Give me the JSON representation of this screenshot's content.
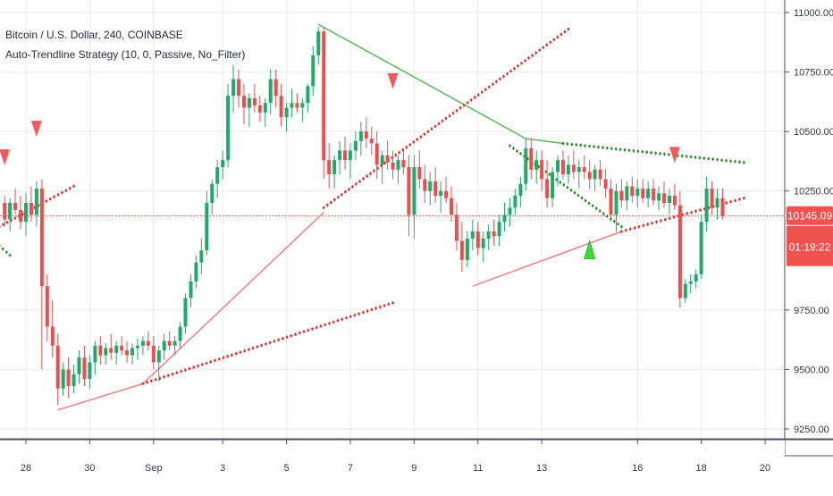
{
  "legend": {
    "symbol_line": "Bitcoin / U.S. Dollar, 240, COINBASE",
    "indicator_line": "Auto-Trendline Strategy (10, 0, Passive, No_Filter)"
  },
  "colors": {
    "up": "#26a69a",
    "down": "#ef5350",
    "up_candle": "#1faa6a",
    "down_candle": "#ef4d4d",
    "trend_green": "#5cb85c",
    "trend_red": "#f08080",
    "dot_red": "#e03030",
    "dot_green": "#2e8b2e",
    "price_tag": "#ef5350",
    "grid": "#e6e9ee",
    "axis_text": "#333a44"
  },
  "chart_data": {
    "type": "candlestick",
    "symbol": "Bitcoin / U.S. Dollar",
    "interval": "240",
    "exchange": "COINBASE",
    "ylim": [
      9200,
      11100
    ],
    "y_ticks": [
      11000.0,
      10750.0,
      10500.0,
      10250.0,
      9750.0,
      9500.0,
      9250.0
    ],
    "y_tick_labels": [
      "11000.00",
      "10750.00",
      "10500.00",
      "10250.00",
      "9750.00",
      "9500.00",
      "9250.00"
    ],
    "x_ticks": [
      {
        "label": "28",
        "pos": 0
      },
      {
        "label": "30",
        "pos": 12
      },
      {
        "label": "Sep",
        "pos": 24
      },
      {
        "label": "3",
        "pos": 37
      },
      {
        "label": "5",
        "pos": 49
      },
      {
        "label": "7",
        "pos": 61
      },
      {
        "label": "9",
        "pos": 73
      },
      {
        "label": "11",
        "pos": 85
      },
      {
        "label": "13",
        "pos": 97
      },
      {
        "label": "16",
        "pos": 115
      },
      {
        "label": "18",
        "pos": 127
      },
      {
        "label": "20",
        "pos": 139
      }
    ],
    "last_price": 10145.09,
    "last_price_label": "10145.09",
    "countdown_label": "01:19:22",
    "candles": [
      [
        -4,
        10200,
        10230,
        10100,
        10130
      ],
      [
        -3,
        10130,
        10220,
        10080,
        10200
      ],
      [
        -2,
        10200,
        10260,
        10150,
        10170
      ],
      [
        -1,
        10170,
        10230,
        10090,
        10120
      ],
      [
        0,
        10120,
        10240,
        10060,
        10200
      ],
      [
        1,
        10200,
        10270,
        10120,
        10150
      ],
      [
        2,
        10150,
        10290,
        10100,
        10260
      ],
      [
        3,
        10260,
        10300,
        9500,
        9850
      ],
      [
        4,
        9850,
        9900,
        9620,
        9680
      ],
      [
        5,
        9680,
        9790,
        9550,
        9600
      ],
      [
        6,
        9600,
        9650,
        9350,
        9420
      ],
      [
        7,
        9420,
        9530,
        9390,
        9500
      ],
      [
        8,
        9500,
        9550,
        9380,
        9430
      ],
      [
        9,
        9430,
        9520,
        9400,
        9480
      ],
      [
        10,
        9480,
        9580,
        9440,
        9550
      ],
      [
        11,
        9550,
        9600,
        9430,
        9460
      ],
      [
        12,
        9460,
        9560,
        9420,
        9530
      ],
      [
        13,
        9530,
        9620,
        9480,
        9600
      ],
      [
        14,
        9600,
        9640,
        9520,
        9560
      ],
      [
        15,
        9560,
        9610,
        9520,
        9590
      ],
      [
        16,
        9590,
        9650,
        9540,
        9570
      ],
      [
        17,
        9570,
        9620,
        9520,
        9600
      ],
      [
        18,
        9600,
        9640,
        9560,
        9580
      ],
      [
        19,
        9580,
        9620,
        9530,
        9560
      ],
      [
        20,
        9560,
        9610,
        9520,
        9590
      ],
      [
        21,
        9590,
        9630,
        9540,
        9600
      ],
      [
        22,
        9600,
        9640,
        9560,
        9620
      ],
      [
        23,
        9620,
        9660,
        9580,
        9600
      ],
      [
        24,
        9600,
        9640,
        9500,
        9530
      ],
      [
        25,
        9530,
        9600,
        9450,
        9580
      ],
      [
        26,
        9580,
        9650,
        9540,
        9620
      ],
      [
        27,
        9620,
        9660,
        9580,
        9600
      ],
      [
        28,
        9600,
        9640,
        9560,
        9620
      ],
      [
        29,
        9620,
        9700,
        9590,
        9680
      ],
      [
        30,
        9680,
        9820,
        9650,
        9800
      ],
      [
        31,
        9800,
        9900,
        9760,
        9870
      ],
      [
        32,
        9870,
        9980,
        9840,
        9950
      ],
      [
        33,
        9950,
        10050,
        9900,
        10000
      ],
      [
        34,
        10000,
        10250,
        9980,
        10200
      ],
      [
        35,
        10200,
        10300,
        10150,
        10280
      ],
      [
        36,
        10280,
        10380,
        10220,
        10350
      ],
      [
        37,
        10350,
        10420,
        10300,
        10380
      ],
      [
        38,
        10380,
        10700,
        10350,
        10650
      ],
      [
        39,
        10650,
        10780,
        10580,
        10720
      ],
      [
        40,
        10720,
        10760,
        10600,
        10650
      ],
      [
        41,
        10650,
        10700,
        10530,
        10600
      ],
      [
        42,
        10600,
        10660,
        10520,
        10640
      ],
      [
        43,
        10640,
        10700,
        10580,
        10610
      ],
      [
        44,
        10610,
        10650,
        10540,
        10580
      ],
      [
        45,
        10580,
        10640,
        10520,
        10620
      ],
      [
        46,
        10620,
        10760,
        10570,
        10720
      ],
      [
        47,
        10720,
        10760,
        10600,
        10650
      ],
      [
        48,
        10650,
        10700,
        10520,
        10560
      ],
      [
        49,
        10560,
        10620,
        10500,
        10600
      ],
      [
        50,
        10600,
        10680,
        10560,
        10620
      ],
      [
        51,
        10620,
        10660,
        10580,
        10600
      ],
      [
        52,
        10600,
        10640,
        10540,
        10620
      ],
      [
        53,
        10620,
        10700,
        10580,
        10690
      ],
      [
        54,
        10690,
        10860,
        10650,
        10820
      ],
      [
        55,
        10820,
        10940,
        10780,
        10920
      ],
      [
        56,
        10920,
        10940,
        10300,
        10380
      ],
      [
        57,
        10380,
        10450,
        10260,
        10320
      ],
      [
        58,
        10320,
        10400,
        10260,
        10380
      ],
      [
        59,
        10380,
        10460,
        10320,
        10420
      ],
      [
        60,
        10420,
        10480,
        10340,
        10380
      ],
      [
        61,
        10380,
        10450,
        10300,
        10420
      ],
      [
        62,
        10420,
        10500,
        10380,
        10460
      ],
      [
        63,
        10460,
        10540,
        10400,
        10500
      ],
      [
        64,
        10500,
        10560,
        10430,
        10470
      ],
      [
        65,
        10470,
        10520,
        10400,
        10450
      ],
      [
        66,
        10450,
        10500,
        10300,
        10360
      ],
      [
        67,
        10360,
        10420,
        10280,
        10400
      ],
      [
        68,
        10400,
        10460,
        10340,
        10370
      ],
      [
        69,
        10370,
        10420,
        10300,
        10340
      ],
      [
        70,
        10340,
        10400,
        10280,
        10380
      ],
      [
        71,
        10380,
        10430,
        10320,
        10350
      ],
      [
        72,
        10350,
        10400,
        10060,
        10150
      ],
      [
        73,
        10150,
        10400,
        10050,
        10350
      ],
      [
        74,
        10350,
        10420,
        10260,
        10300
      ],
      [
        75,
        10300,
        10360,
        10200,
        10250
      ],
      [
        76,
        10250,
        10330,
        10190,
        10290
      ],
      [
        77,
        10290,
        10350,
        10200,
        10230
      ],
      [
        78,
        10230,
        10290,
        10160,
        10250
      ],
      [
        79,
        10250,
        10310,
        10200,
        10220
      ],
      [
        80,
        10220,
        10270,
        10120,
        10150
      ],
      [
        81,
        10150,
        10200,
        10000,
        10040
      ],
      [
        82,
        10040,
        10120,
        9910,
        9960
      ],
      [
        83,
        9960,
        10080,
        9930,
        10050
      ],
      [
        84,
        10050,
        10130,
        10000,
        10080
      ],
      [
        85,
        10080,
        10120,
        9980,
        10010
      ],
      [
        86,
        10010,
        10080,
        9950,
        10050
      ],
      [
        87,
        10050,
        10110,
        10000,
        10080
      ],
      [
        88,
        10080,
        10130,
        10020,
        10060
      ],
      [
        89,
        10060,
        10150,
        10020,
        10120
      ],
      [
        90,
        10120,
        10200,
        10080,
        10150
      ],
      [
        91,
        10150,
        10220,
        10100,
        10180
      ],
      [
        92,
        10180,
        10260,
        10150,
        10230
      ],
      [
        93,
        10230,
        10310,
        10180,
        10280
      ],
      [
        94,
        10280,
        10470,
        10250,
        10430
      ],
      [
        95,
        10430,
        10470,
        10300,
        10340
      ],
      [
        96,
        10340,
        10420,
        10280,
        10380
      ],
      [
        97,
        10380,
        10420,
        10250,
        10300
      ],
      [
        98,
        10300,
        10380,
        10180,
        10220
      ],
      [
        99,
        10220,
        10350,
        10180,
        10330
      ],
      [
        100,
        10330,
        10400,
        10270,
        10380
      ],
      [
        101,
        10380,
        10420,
        10300,
        10320
      ],
      [
        102,
        10320,
        10400,
        10280,
        10360
      ],
      [
        103,
        10360,
        10420,
        10300,
        10330
      ],
      [
        104,
        10330,
        10380,
        10260,
        10350
      ],
      [
        105,
        10350,
        10400,
        10300,
        10330
      ],
      [
        106,
        10330,
        10380,
        10260,
        10300
      ],
      [
        107,
        10300,
        10360,
        10250,
        10340
      ],
      [
        108,
        10340,
        10380,
        10270,
        10300
      ],
      [
        109,
        10300,
        10340,
        10220,
        10260
      ],
      [
        110,
        10260,
        10300,
        10120,
        10150
      ],
      [
        111,
        10150,
        10280,
        10080,
        10250
      ],
      [
        112,
        10250,
        10300,
        10180,
        10210
      ],
      [
        113,
        10210,
        10290,
        10170,
        10270
      ],
      [
        114,
        10270,
        10310,
        10200,
        10230
      ],
      [
        115,
        10230,
        10300,
        10180,
        10260
      ],
      [
        116,
        10260,
        10300,
        10200,
        10220
      ],
      [
        117,
        10220,
        10290,
        10180,
        10260
      ],
      [
        118,
        10260,
        10300,
        10190,
        10210
      ],
      [
        119,
        10210,
        10270,
        10170,
        10240
      ],
      [
        120,
        10240,
        10290,
        10180,
        10200
      ],
      [
        121,
        10200,
        10260,
        10150,
        10230
      ],
      [
        122,
        10230,
        10280,
        10170,
        10190
      ],
      [
        123,
        10190,
        10250,
        9760,
        9800
      ],
      [
        124,
        9800,
        9880,
        9780,
        9860
      ],
      [
        125,
        9860,
        9900,
        9820,
        9870
      ],
      [
        126,
        9870,
        9920,
        9840,
        9900
      ],
      [
        127,
        9900,
        10150,
        9880,
        10120
      ],
      [
        128,
        10120,
        10310,
        10080,
        10260
      ],
      [
        129,
        10260,
        10290,
        10150,
        10180
      ],
      [
        130,
        10180,
        10260,
        10130,
        10220
      ],
      [
        131,
        10220,
        10260,
        10130,
        10145.09
      ]
    ],
    "trendlines": [
      {
        "color": "green",
        "points": [
          [
            55,
            10950
          ],
          [
            94,
            10470
          ],
          [
            101,
            10450
          ]
        ]
      },
      {
        "color": "red",
        "points": [
          [
            6,
            9330
          ],
          [
            22,
            9440
          ],
          [
            56,
            10160
          ]
        ]
      },
      {
        "color": "red",
        "points": [
          [
            84,
            9850
          ],
          [
            112,
            10080
          ]
        ]
      }
    ],
    "dot_lines": [
      {
        "color": "red",
        "from": [
          -5,
          10100
        ],
        "to": [
          9,
          10270
        ]
      },
      {
        "color": "red",
        "from": [
          56,
          10180
        ],
        "to": [
          102,
          10930
        ]
      },
      {
        "color": "red",
        "from": [
          22,
          9440
        ],
        "to": [
          69,
          9780
        ]
      },
      {
        "color": "red",
        "from": [
          112,
          10080
        ],
        "to": [
          135,
          10220
        ]
      },
      {
        "color": "green",
        "from": [
          91,
          10440
        ],
        "to": [
          112,
          10100
        ]
      },
      {
        "color": "green",
        "from": [
          101,
          10450
        ],
        "to": [
          135,
          10370
        ]
      },
      {
        "color": "green",
        "from": [
          -5,
          10020
        ],
        "to": [
          -3,
          9980
        ]
      }
    ],
    "signals": [
      {
        "type": "sell",
        "x": -4,
        "price": 10380
      },
      {
        "type": "sell",
        "x": 2,
        "price": 10500
      },
      {
        "type": "sell",
        "x": 69,
        "price": 10700
      },
      {
        "type": "buy",
        "x": 106,
        "price": 10010
      },
      {
        "type": "sell",
        "x": 122,
        "price": 10390
      }
    ]
  }
}
